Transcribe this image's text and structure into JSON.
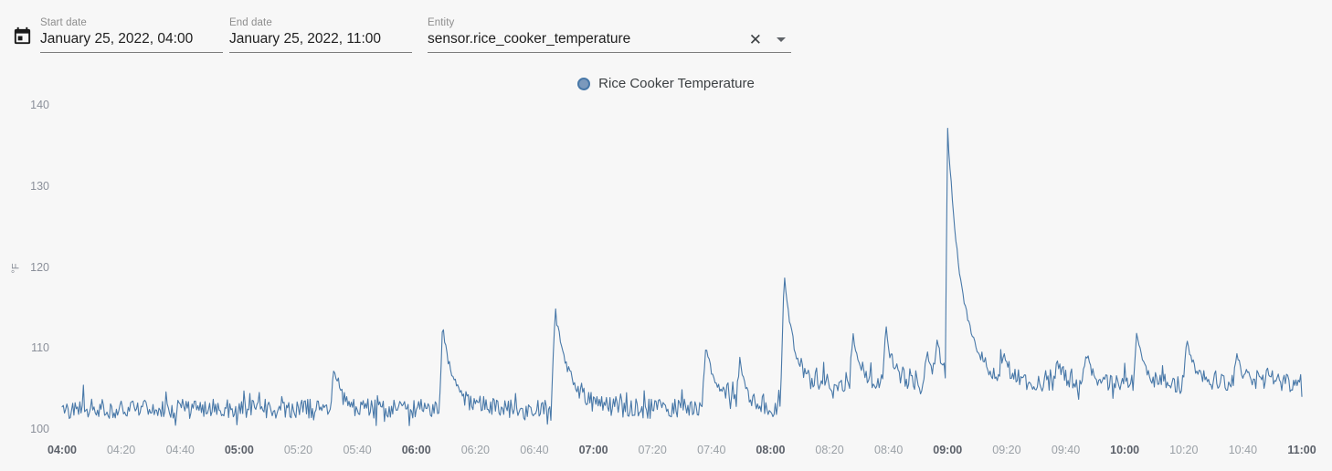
{
  "header": {
    "start_date": {
      "label": "Start date",
      "value": "January 25, 2022, 04:00"
    },
    "end_date": {
      "label": "End date",
      "value": "January 25, 2022, 11:00"
    },
    "entity": {
      "label": "Entity",
      "value": "sensor.rice_cooker_temperature",
      "clear_icon": "✕"
    }
  },
  "legend": {
    "label": "Rice Cooker Temperature",
    "marker_fill": "#7b99bc",
    "marker_stroke": "#4878a8"
  },
  "chart_data": {
    "type": "line",
    "series_name": "Rice Cooker Temperature",
    "unit": "°F",
    "line_color": "#4878a8",
    "ylim": [
      99,
      142
    ],
    "yticks": [
      100,
      110,
      120,
      130,
      140
    ],
    "x_start": "04:00",
    "x_end": "11:00",
    "x_tick_interval_min": 20,
    "xticks": [
      {
        "label": "04:00",
        "bold": true
      },
      {
        "label": "04:20",
        "bold": false
      },
      {
        "label": "04:40",
        "bold": false
      },
      {
        "label": "05:00",
        "bold": true
      },
      {
        "label": "05:20",
        "bold": false
      },
      {
        "label": "05:40",
        "bold": false
      },
      {
        "label": "06:00",
        "bold": true
      },
      {
        "label": "06:20",
        "bold": false
      },
      {
        "label": "06:40",
        "bold": false
      },
      {
        "label": "07:00",
        "bold": true
      },
      {
        "label": "07:20",
        "bold": false
      },
      {
        "label": "07:40",
        "bold": false
      },
      {
        "label": "08:00",
        "bold": true
      },
      {
        "label": "08:20",
        "bold": false
      },
      {
        "label": "08:40",
        "bold": false
      },
      {
        "label": "09:00",
        "bold": true
      },
      {
        "label": "09:20",
        "bold": false
      },
      {
        "label": "09:40",
        "bold": false
      },
      {
        "label": "10:00",
        "bold": true
      },
      {
        "label": "10:20",
        "bold": false
      },
      {
        "label": "10:40",
        "bold": false
      },
      {
        "label": "11:00",
        "bold": true
      }
    ],
    "baseline_segments": [
      {
        "from_min": 0,
        "to_min": 244.5,
        "base_f": 102.5,
        "noise_f": 1.2
      },
      {
        "from_min": 244.5,
        "to_min": 420,
        "base_f": 105.7,
        "noise_f": 1.1
      }
    ],
    "spikes": [
      {
        "time": "05:32",
        "t_min": 92,
        "peak_f": 107.5,
        "decay_min": 3
      },
      {
        "time": "06:09",
        "t_min": 129,
        "peak_f": 112.5,
        "decay_min": 4
      },
      {
        "time": "06:47",
        "t_min": 167,
        "peak_f": 115.0,
        "decay_min": 4.6
      },
      {
        "time": "07:38",
        "t_min": 218,
        "peak_f": 110.2,
        "decay_min": 4
      },
      {
        "time": "07:49",
        "t_min": 229.5,
        "peak_f": 108.5,
        "decay_min": 2.5
      },
      {
        "time": "08:04",
        "t_min": 244.5,
        "peak_f": 120.0,
        "decay_min": 3
      },
      {
        "time": "08:28",
        "t_min": 268,
        "peak_f": 111.8,
        "decay_min": 2.5
      },
      {
        "time": "08:39",
        "t_min": 279,
        "peak_f": 112.0,
        "decay_min": 2.5
      },
      {
        "time": "08:53",
        "t_min": 293,
        "peak_f": 109.5,
        "decay_min": 2
      },
      {
        "time": "08:56",
        "t_min": 296.5,
        "peak_f": 110.5,
        "decay_min": 1.5
      },
      {
        "time": "09:00",
        "t_min": 300,
        "peak_f": 136.5,
        "decay_min": 5,
        "rise_min": 0.8
      },
      {
        "time": "09:19",
        "t_min": 319,
        "peak_f": 108.8,
        "decay_min": 2
      },
      {
        "time": "09:37",
        "t_min": 337,
        "peak_f": 108.5,
        "decay_min": 2
      },
      {
        "time": "09:47",
        "t_min": 347,
        "peak_f": 109.5,
        "decay_min": 2
      },
      {
        "time": "10:04",
        "t_min": 364,
        "peak_f": 112.0,
        "decay_min": 2.5
      },
      {
        "time": "10:21",
        "t_min": 381,
        "peak_f": 111.5,
        "decay_min": 2.5
      },
      {
        "time": "10:38",
        "t_min": 398,
        "peak_f": 109.5,
        "decay_min": 2
      }
    ],
    "sample_step_min": 0.4
  }
}
